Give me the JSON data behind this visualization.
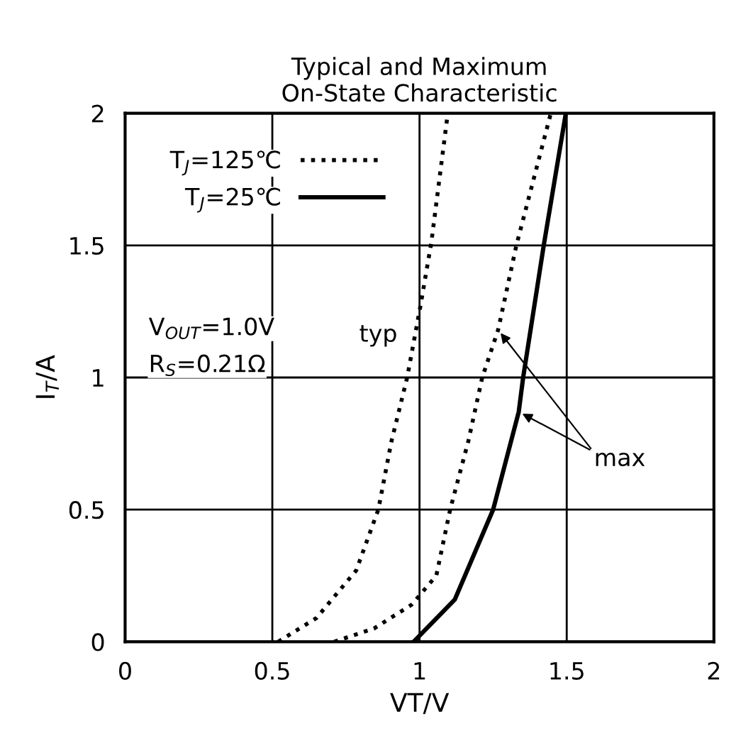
{
  "chart_data": {
    "type": "line",
    "title": "Typical and Maximum\nOn-State Characteristic",
    "xlabel": "VT/V",
    "ylabel": "I$_{T}$/A",
    "xlim": [
      0,
      2
    ],
    "ylim": [
      0,
      2
    ],
    "xticks": [
      0,
      0.5,
      1,
      1.5,
      2
    ],
    "yticks": [
      0,
      0.5,
      1,
      1.5,
      2
    ],
    "grid": true,
    "legend": "top left",
    "marker": "none",
    "series": [
      {
        "name": "T$_{J}$=125℃",
        "color": "#000000",
        "line_style": "dotted",
        "x": [
          0.52,
          0.65,
          0.785,
          0.86,
          0.905,
          0.958,
          1.003,
          1.04,
          1.096
        ],
        "values": [
          0,
          0.09,
          0.27,
          0.5,
          0.76,
          1.0,
          1.27,
          1.51,
          2.0
        ]
      },
      {
        "color": "#000000",
        "line_style": "dotted",
        "x": [
          0.71,
          0.845,
          0.973,
          1.057,
          1.104,
          1.166,
          1.213,
          1.267,
          1.329,
          1.446
        ],
        "values": [
          0,
          0.05,
          0.14,
          0.25,
          0.5,
          0.76,
          1.0,
          1.18,
          1.5,
          2.0
        ]
      },
      {
        "name": "T$_{J}$=25℃",
        "color": "#000000",
        "line_style": "solid",
        "x": [
          0.98,
          1.12,
          1.25,
          1.337,
          1.352,
          1.422,
          1.497
        ],
        "values": [
          0,
          0.16,
          0.5,
          0.87,
          1.0,
          1.5,
          2.0
        ]
      }
    ],
    "annotations": [
      "V$_{OUT}$=1.0V",
      "R$_{S}$=0.21Ω",
      {
        "text": "typ",
        "x": 0.86,
        "y": 1.16
      },
      {
        "text": "max",
        "x": 1.68,
        "y": 0.69
      }
    ]
  }
}
